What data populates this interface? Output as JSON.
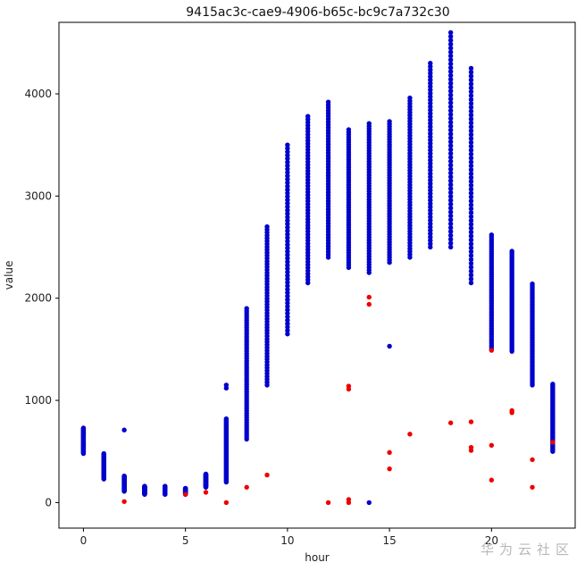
{
  "watermark": "华为云社区",
  "chart_data": {
    "type": "scatter",
    "title": "9415ac3c-cae9-4906-b65c-bc9c7a732c30",
    "xlabel": "hour",
    "ylabel": "value",
    "xlim": [
      -1.2,
      24.1
    ],
    "ylim": [
      -250,
      4700
    ],
    "xticks": [
      0,
      5,
      10,
      15,
      20
    ],
    "yticks": [
      0,
      1000,
      2000,
      3000,
      4000
    ],
    "grid": false,
    "colors": {
      "normal": "#0000cc",
      "anomaly": "#ee0000"
    },
    "series": [
      {
        "values": [
          {
            "hour": 0,
            "min": 480,
            "max": 730
          },
          {
            "hour": 1,
            "min": 230,
            "max": 480
          },
          {
            "hour": 2,
            "min": 110,
            "max": 260,
            "extra": [
              710
            ]
          },
          {
            "hour": 3,
            "min": 80,
            "max": 160
          },
          {
            "hour": 4,
            "min": 80,
            "max": 160
          },
          {
            "hour": 5,
            "min": 80,
            "max": 140
          },
          {
            "hour": 6,
            "min": 150,
            "max": 280
          },
          {
            "hour": 7,
            "min": 200,
            "max": 820,
            "extra": [
              1120,
              1150
            ]
          },
          {
            "hour": 8,
            "min": 620,
            "max": 1900
          },
          {
            "hour": 9,
            "min": 1150,
            "max": 2700
          },
          {
            "hour": 10,
            "min": 1650,
            "max": 3500
          },
          {
            "hour": 11,
            "min": 2150,
            "max": 3780
          },
          {
            "hour": 12,
            "min": 2400,
            "max": 3920
          },
          {
            "hour": 13,
            "min": 2300,
            "max": 3650
          },
          {
            "hour": 14,
            "min": 2250,
            "max": 3710,
            "extra": [
              0
            ]
          },
          {
            "hour": 15,
            "min": 2350,
            "max": 3730,
            "extra": [
              1530
            ]
          },
          {
            "hour": 16,
            "min": 2400,
            "max": 3960
          },
          {
            "hour": 17,
            "min": 2500,
            "max": 4300
          },
          {
            "hour": 18,
            "min": 2500,
            "max": 4600
          },
          {
            "hour": 19,
            "min": 2150,
            "max": 4250
          },
          {
            "hour": 20,
            "min": 1500,
            "max": 2620
          },
          {
            "hour": 21,
            "min": 1480,
            "max": 2460
          },
          {
            "hour": 22,
            "min": 1150,
            "max": 2140
          },
          {
            "hour": 23,
            "min": 500,
            "max": 1160
          }
        ]
      },
      {
        "values": [
          {
            "hour": 2,
            "value": 10
          },
          {
            "hour": 5,
            "value": 80
          },
          {
            "hour": 6,
            "value": 100
          },
          {
            "hour": 7,
            "value": 0
          },
          {
            "hour": 8,
            "value": 150
          },
          {
            "hour": 9,
            "value": 270
          },
          {
            "hour": 12,
            "value": 0
          },
          {
            "hour": 13,
            "value": 0
          },
          {
            "hour": 13,
            "value": 30
          },
          {
            "hour": 13,
            "value": 1110
          },
          {
            "hour": 13,
            "value": 1140
          },
          {
            "hour": 14,
            "value": 1940
          },
          {
            "hour": 14,
            "value": 2010
          },
          {
            "hour": 15,
            "value": 330
          },
          {
            "hour": 15,
            "value": 490
          },
          {
            "hour": 16,
            "value": 670
          },
          {
            "hour": 18,
            "value": 780
          },
          {
            "hour": 19,
            "value": 510
          },
          {
            "hour": 19,
            "value": 540
          },
          {
            "hour": 19,
            "value": 790
          },
          {
            "hour": 20,
            "value": 220
          },
          {
            "hour": 20,
            "value": 560
          },
          {
            "hour": 20,
            "value": 1490
          },
          {
            "hour": 21,
            "value": 880
          },
          {
            "hour": 21,
            "value": 900
          },
          {
            "hour": 22,
            "value": 150
          },
          {
            "hour": 22,
            "value": 420
          },
          {
            "hour": 23,
            "value": 590
          }
        ]
      }
    ]
  }
}
